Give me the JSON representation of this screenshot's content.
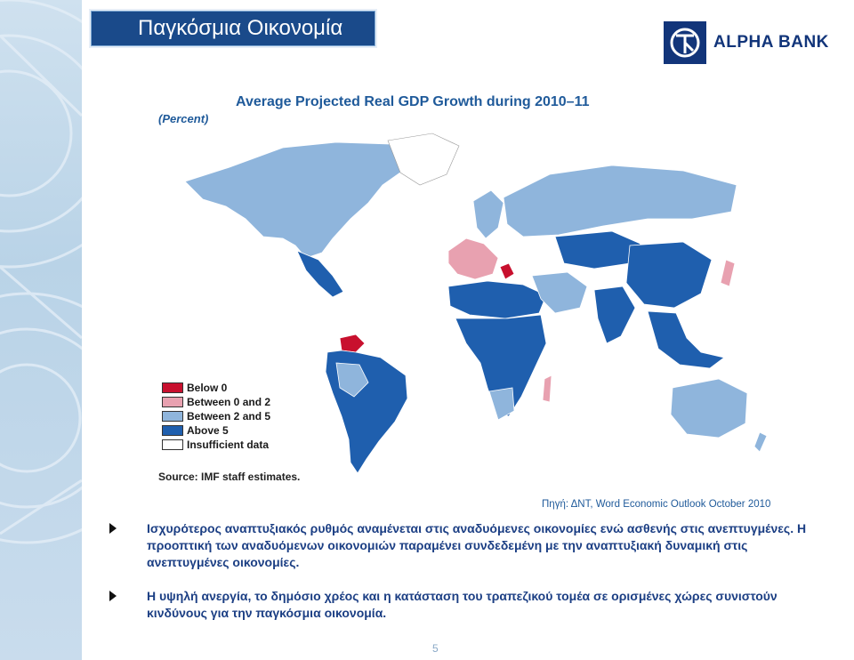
{
  "slide": {
    "title": "Παγκόσμια Οικονομία",
    "brand": "ALPHA BANK",
    "page_number": "5"
  },
  "map": {
    "title": "Average Projected Real GDP Growth during 2010–11",
    "subtitle": "(Percent)",
    "source": "Source: IMF staff estimates.",
    "legend": [
      {
        "label": "Below 0",
        "color": "#c8102e"
      },
      {
        "label": "Between 0 and 2",
        "color": "#e8a1b0"
      },
      {
        "label": "Between 2 and 5",
        "color": "#8fb5dc"
      },
      {
        "label": "Above 5",
        "color": "#1f5fae"
      },
      {
        "label": "Insufficient data",
        "color": "#ffffff"
      }
    ]
  },
  "source_note": "Πηγή: ΔΝΤ, Word Economic Outlook October 2010",
  "bullets": [
    "Ισχυρότερος αναπτυξιακός ρυθμός αναμένεται στις αναδυόμενες οικονομίες ενώ ασθενής στις ανεπτυγμένες. Η προοπτική των αναδυόμενων οικονομιών παραμένει συνδεδεμένη με την αναπτυξιακή δυναμική στις ανεπτυγμένες οικονομίες.",
    "Η υψηλή ανεργία, το δημόσιο χρέος και η κατάσταση του τραπεζικού τομέα σε ορισμένες χώρες συνιστούν κινδύνους για την παγκόσμια οικονομία."
  ],
  "colors": {
    "below_0": "#c8102e",
    "between_0_2": "#e8a1b0",
    "between_2_5": "#8fb5dc",
    "above_5": "#1f5fae"
  }
}
